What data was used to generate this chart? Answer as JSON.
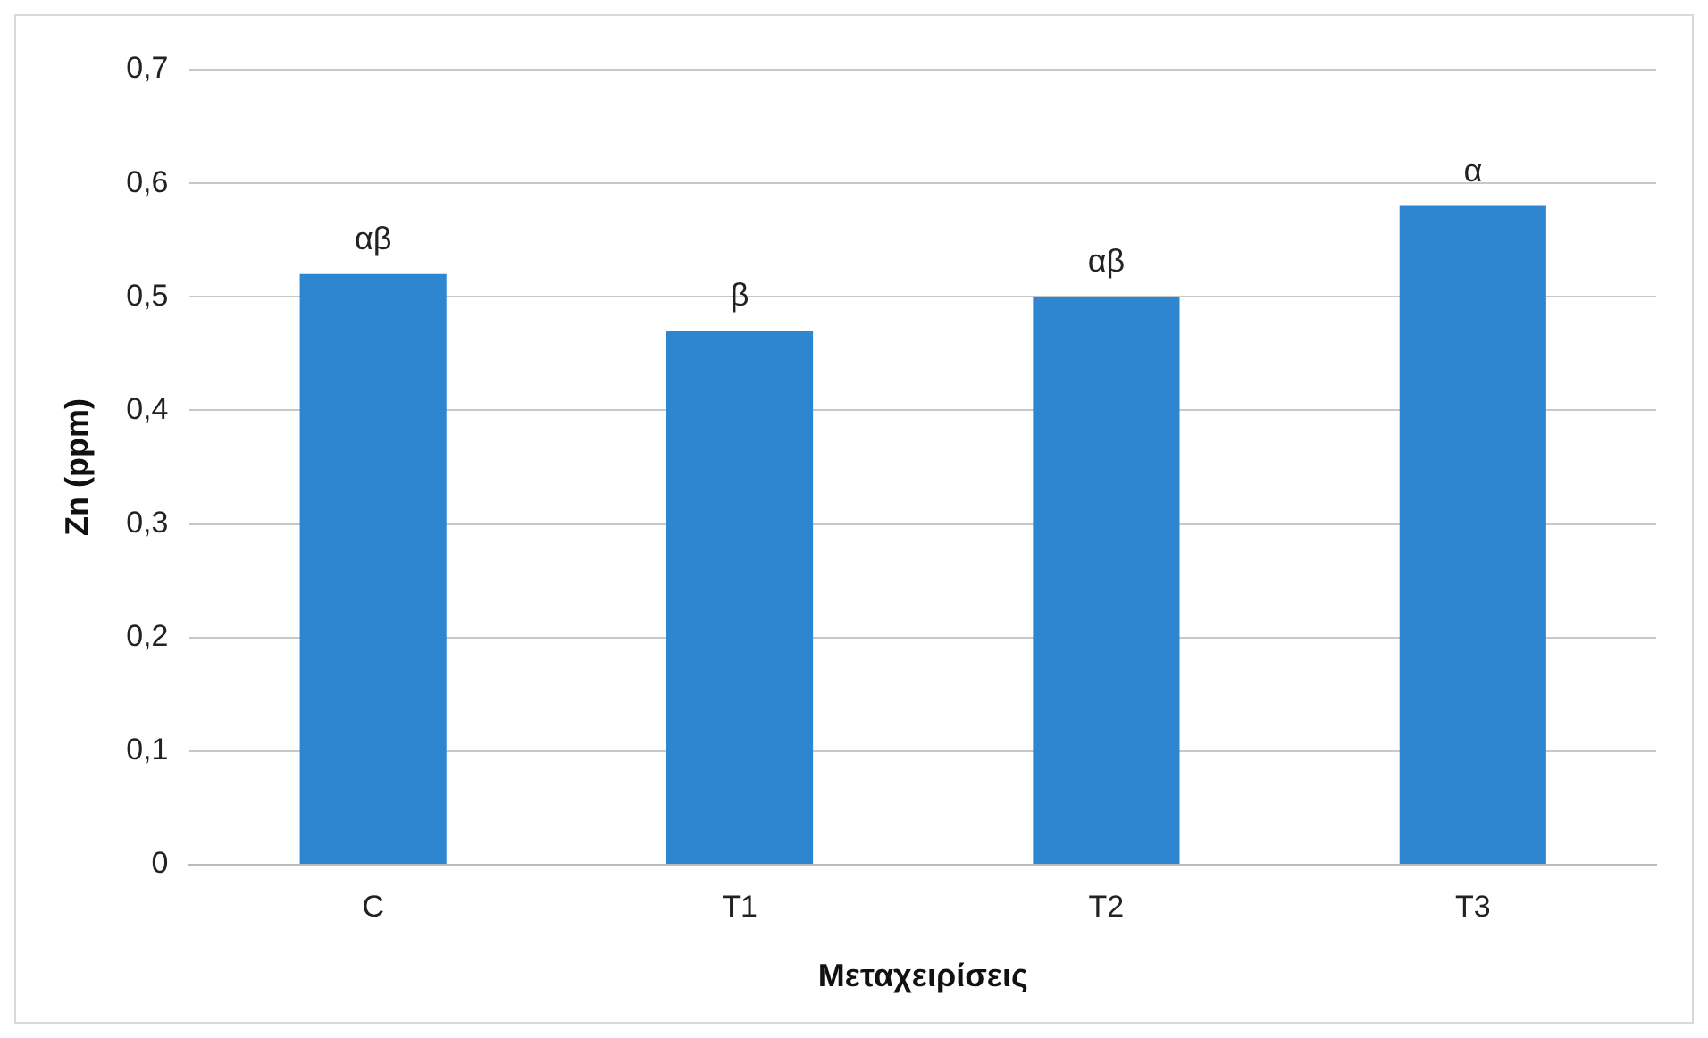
{
  "chart_data": {
    "type": "bar",
    "xlabel": "Μεταχειρίσεις",
    "ylabel": "Zn (ppm)",
    "categories": [
      "C",
      "T1",
      "T2",
      "T3"
    ],
    "values": [
      0.52,
      0.47,
      0.5,
      0.58
    ],
    "color": "#2e86d1",
    "ylim": [
      0,
      0.7
    ],
    "yticks": [
      0,
      {
        "value": 0.1,
        "label": "0,1"
      },
      {
        "value": 0.2,
        "label": "0,2"
      },
      {
        "value": 0.3,
        "label": "0,3"
      },
      {
        "value": 0.4,
        "label": "0,4"
      },
      {
        "value": 0.5,
        "label": "0,5"
      },
      {
        "value": 0.6,
        "label": "0,6"
      },
      {
        "value": 0.7,
        "label": "0,7"
      }
    ],
    "grid": "y",
    "annotations": [
      {
        "text": "αβ",
        "x": "C",
        "y": 0.52
      },
      {
        "text": "β",
        "x": "T1",
        "y": 0.47
      },
      {
        "text": "αβ",
        "x": "T2",
        "y": 0.5
      },
      {
        "text": "α",
        "x": "T3",
        "y": 0.58
      }
    ]
  }
}
